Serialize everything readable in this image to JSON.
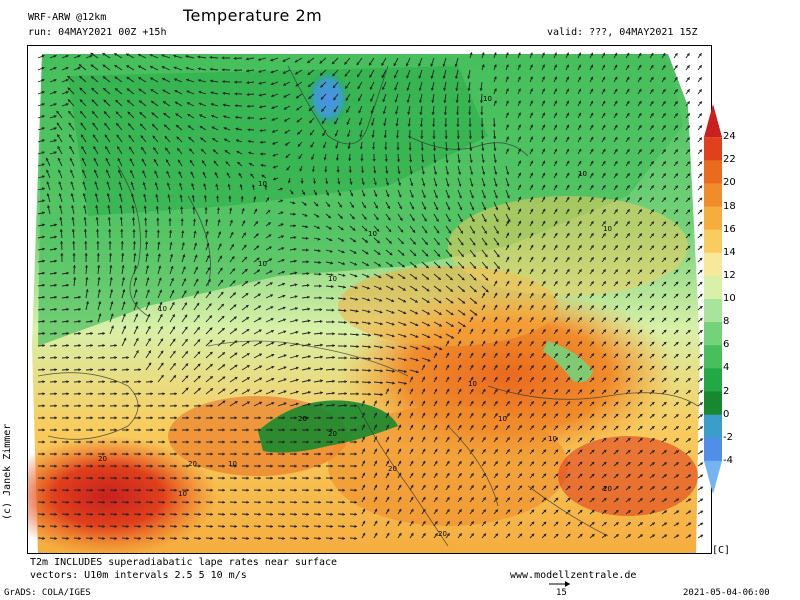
{
  "header": {
    "model": "WRF-ARW @12km",
    "run": "run: 04MAY2021 00Z +15h",
    "title": "Temperature 2m",
    "valid": "valid: ???, 04MAY2021 15Z"
  },
  "map": {
    "credit": "(c) Janek Zimmer",
    "contour_labels": [
      "10",
      "10",
      "10",
      "10",
      "10",
      "10",
      "10",
      "10",
      "10",
      "10",
      "10",
      "20",
      "20",
      "20",
      "20",
      "20",
      "20",
      "20",
      "10",
      "10"
    ]
  },
  "colorbar": {
    "ticks": [
      "24",
      "22",
      "20",
      "18",
      "16",
      "14",
      "12",
      "10",
      "8",
      "6",
      "4",
      "2",
      "0",
      "-2",
      "-4"
    ],
    "colors": [
      "#c8201e",
      "#e0401c",
      "#ea6a1e",
      "#f08c2a",
      "#f5ad3e",
      "#f8cc5e",
      "#f7e89a",
      "#d8f0a8",
      "#a8e49a",
      "#74d27a",
      "#46bf5c",
      "#22a844",
      "#17882f",
      "#3b9ec8",
      "#4f8fe8",
      "#74b4f0"
    ],
    "unit": "[C]"
  },
  "footer": {
    "note1": "T2m INCLUDES superadiabatic lape rates near surface",
    "note2": "vectors: U10m intervals 2.5 5 10 m/s",
    "url": "www.modellzentrale.de",
    "grads": "GrADS: COLA/IGES",
    "vector_ref": "15",
    "timestamp": "2021-05-04-06:00"
  }
}
